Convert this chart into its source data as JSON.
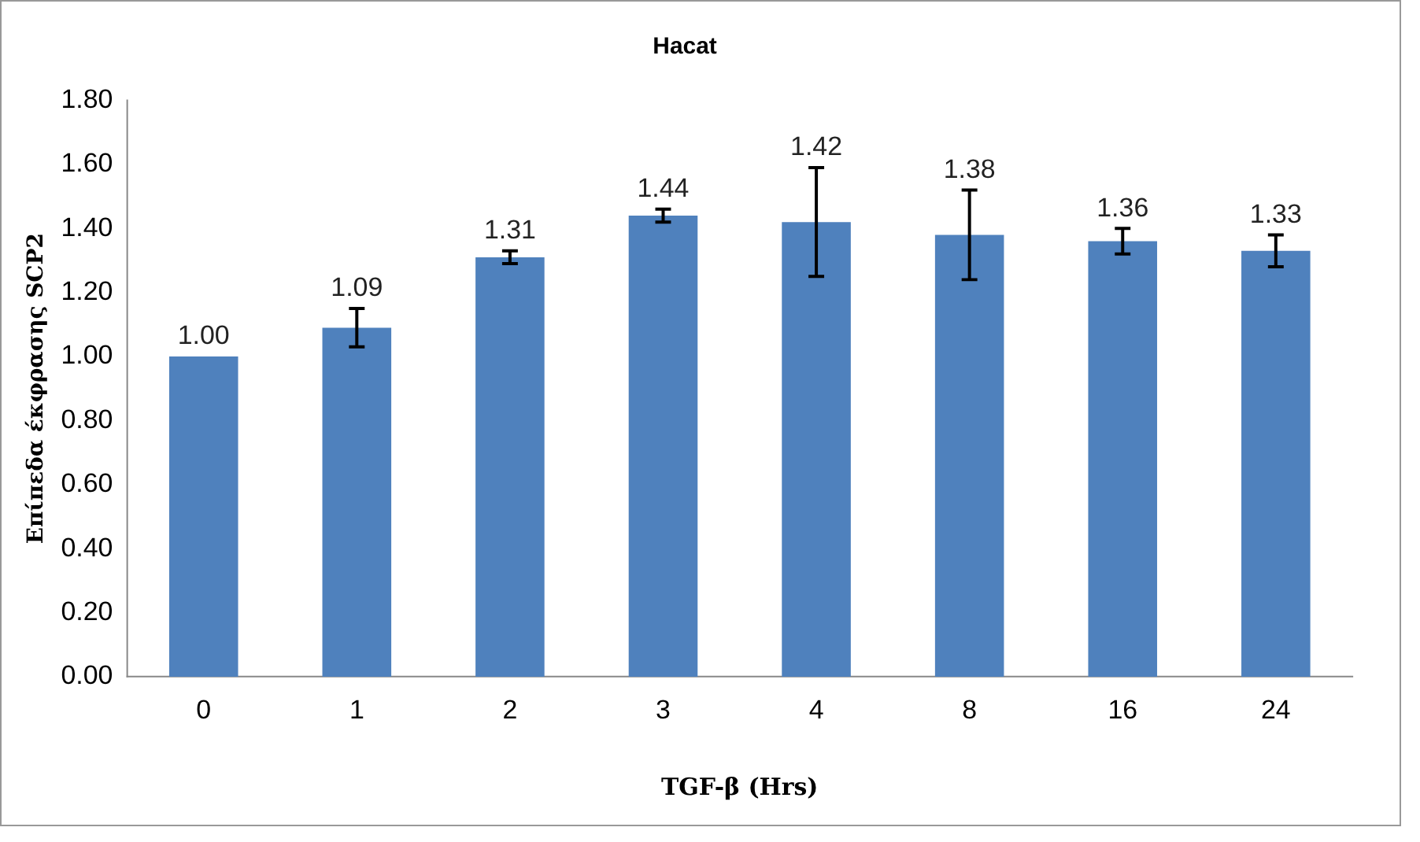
{
  "chart_data": {
    "type": "bar",
    "title": "Hacat",
    "xlabel": "TGF-β (Hrs)",
    "ylabel": "Επίπεδα έκφρασης SCP2",
    "categories": [
      "0",
      "1",
      "2",
      "3",
      "4",
      "8",
      "16",
      "24"
    ],
    "values": [
      1.0,
      1.09,
      1.31,
      1.44,
      1.42,
      1.38,
      1.36,
      1.33
    ],
    "errors": [
      null,
      0.06,
      0.02,
      0.02,
      0.17,
      0.14,
      0.04,
      0.05
    ],
    "value_labels": [
      "1.00",
      "1.09",
      "1.31",
      "1.44",
      "1.42",
      "1.38",
      "1.36",
      "1.33"
    ],
    "color": "#4f81bd",
    "grid": false,
    "legend": false,
    "ylim": [
      0,
      1.8
    ],
    "yticks": [
      {
        "value": 0,
        "label": "0.00"
      },
      {
        "value": 0.2,
        "label": "0.20"
      },
      {
        "value": 0.4,
        "label": "0.40"
      },
      {
        "value": 0.6,
        "label": "0.60"
      },
      {
        "value": 0.8,
        "label": "0.80"
      },
      {
        "value": 1,
        "label": "1.00"
      },
      {
        "value": 1.2,
        "label": "1.20"
      },
      {
        "value": 1.4,
        "label": "1.40"
      },
      {
        "value": 1.6,
        "label": "1.60"
      },
      {
        "value": 1.8,
        "label": "1.80"
      }
    ]
  }
}
